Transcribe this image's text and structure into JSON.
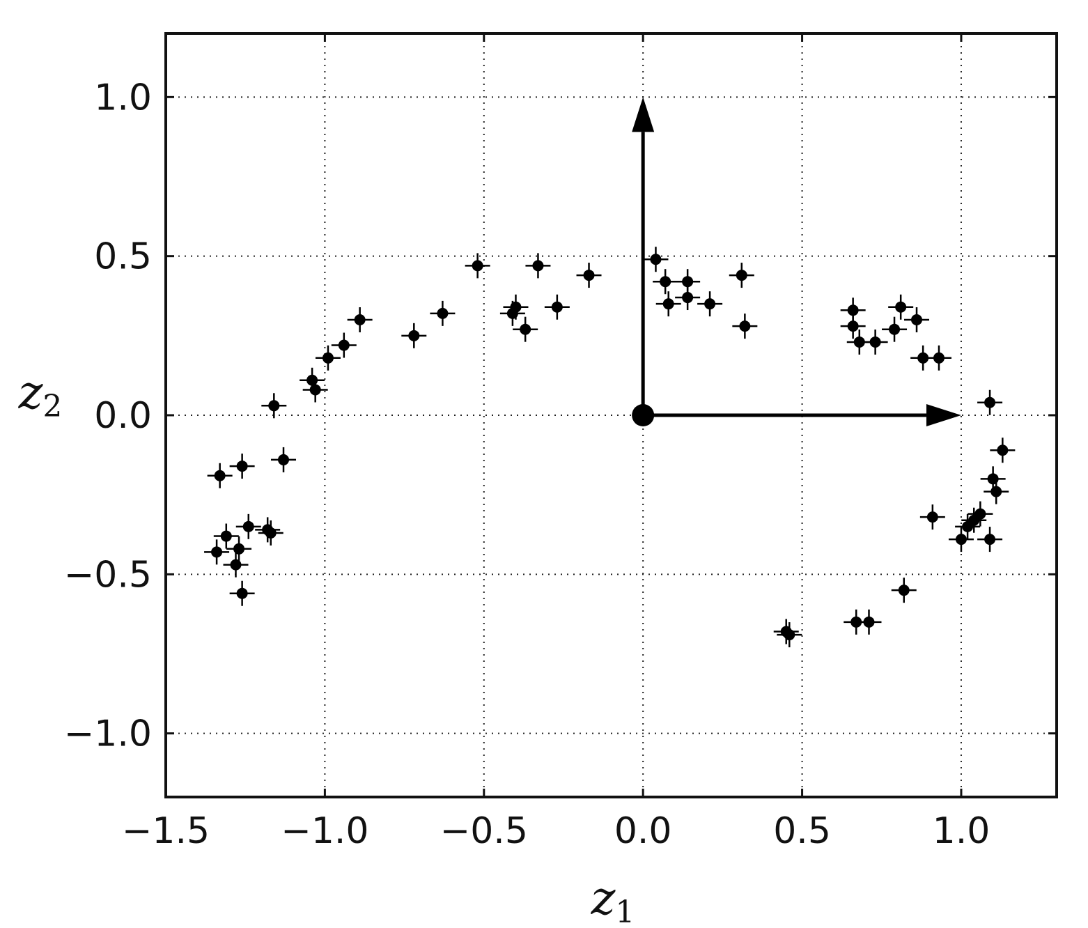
{
  "chart_data": {
    "type": "scatter",
    "title": "",
    "xlabel": "z",
    "xlabel_sub": "1",
    "ylabel": "z",
    "ylabel_sub": "2",
    "xlim": [
      -1.5,
      1.3
    ],
    "ylim": [
      -1.2,
      1.2
    ],
    "x_ticks": [
      -1.5,
      -1.0,
      -0.5,
      0.0,
      0.5,
      1.0
    ],
    "x_tick_labels": [
      "−1.5",
      "−1.0",
      "−0.5",
      "0.0",
      "0.5",
      "1.0"
    ],
    "y_ticks": [
      1.0,
      0.5,
      0.0,
      -0.5,
      -1.0
    ],
    "y_tick_labels": [
      "1.0",
      "0.5",
      "0.0",
      "−0.5",
      "−1.0"
    ],
    "grid": true,
    "marker": "plus-dot",
    "colors": {
      "points": "#000000",
      "axes": "#111111",
      "grid": "#222222"
    },
    "arrows": [
      {
        "from": [
          0,
          0
        ],
        "to": [
          1.0,
          0
        ]
      },
      {
        "from": [
          0,
          0
        ],
        "to": [
          0,
          1.0
        ]
      }
    ],
    "origin_marker": [
      0,
      0
    ],
    "points": [
      [
        -1.34,
        -0.43
      ],
      [
        -1.33,
        -0.19
      ],
      [
        -1.31,
        -0.38
      ],
      [
        -1.28,
        -0.47
      ],
      [
        -1.27,
        -0.42
      ],
      [
        -1.26,
        -0.56
      ],
      [
        -1.26,
        -0.16
      ],
      [
        -1.24,
        -0.35
      ],
      [
        -1.18,
        -0.36
      ],
      [
        -1.17,
        -0.37
      ],
      [
        -1.16,
        0.03
      ],
      [
        -1.13,
        -0.14
      ],
      [
        -1.04,
        0.11
      ],
      [
        -1.03,
        0.08
      ],
      [
        -0.99,
        0.18
      ],
      [
        -0.94,
        0.22
      ],
      [
        -0.89,
        0.3
      ],
      [
        -0.72,
        0.25
      ],
      [
        -0.63,
        0.32
      ],
      [
        -0.52,
        0.47
      ],
      [
        -0.41,
        0.32
      ],
      [
        -0.4,
        0.34
      ],
      [
        -0.37,
        0.27
      ],
      [
        -0.33,
        0.47
      ],
      [
        -0.27,
        0.34
      ],
      [
        -0.17,
        0.44
      ],
      [
        0.04,
        0.49
      ],
      [
        0.07,
        0.42
      ],
      [
        0.08,
        0.35
      ],
      [
        0.14,
        0.37
      ],
      [
        0.14,
        0.42
      ],
      [
        0.21,
        0.35
      ],
      [
        0.31,
        0.44
      ],
      [
        0.32,
        0.28
      ],
      [
        0.45,
        -0.68
      ],
      [
        0.46,
        -0.69
      ],
      [
        0.66,
        0.33
      ],
      [
        0.66,
        0.28
      ],
      [
        0.67,
        -0.65
      ],
      [
        0.68,
        0.23
      ],
      [
        0.71,
        -0.65
      ],
      [
        0.73,
        0.23
      ],
      [
        0.79,
        0.27
      ],
      [
        0.81,
        0.34
      ],
      [
        0.82,
        -0.55
      ],
      [
        0.86,
        0.3
      ],
      [
        0.88,
        0.18
      ],
      [
        0.91,
        -0.32
      ],
      [
        0.93,
        0.18
      ],
      [
        1.0,
        -0.39
      ],
      [
        1.02,
        -0.35
      ],
      [
        1.04,
        -0.33
      ],
      [
        1.06,
        -0.31
      ],
      [
        1.09,
        0.04
      ],
      [
        1.09,
        -0.39
      ],
      [
        1.1,
        -0.2
      ],
      [
        1.11,
        -0.24
      ],
      [
        1.13,
        -0.11
      ]
    ]
  }
}
